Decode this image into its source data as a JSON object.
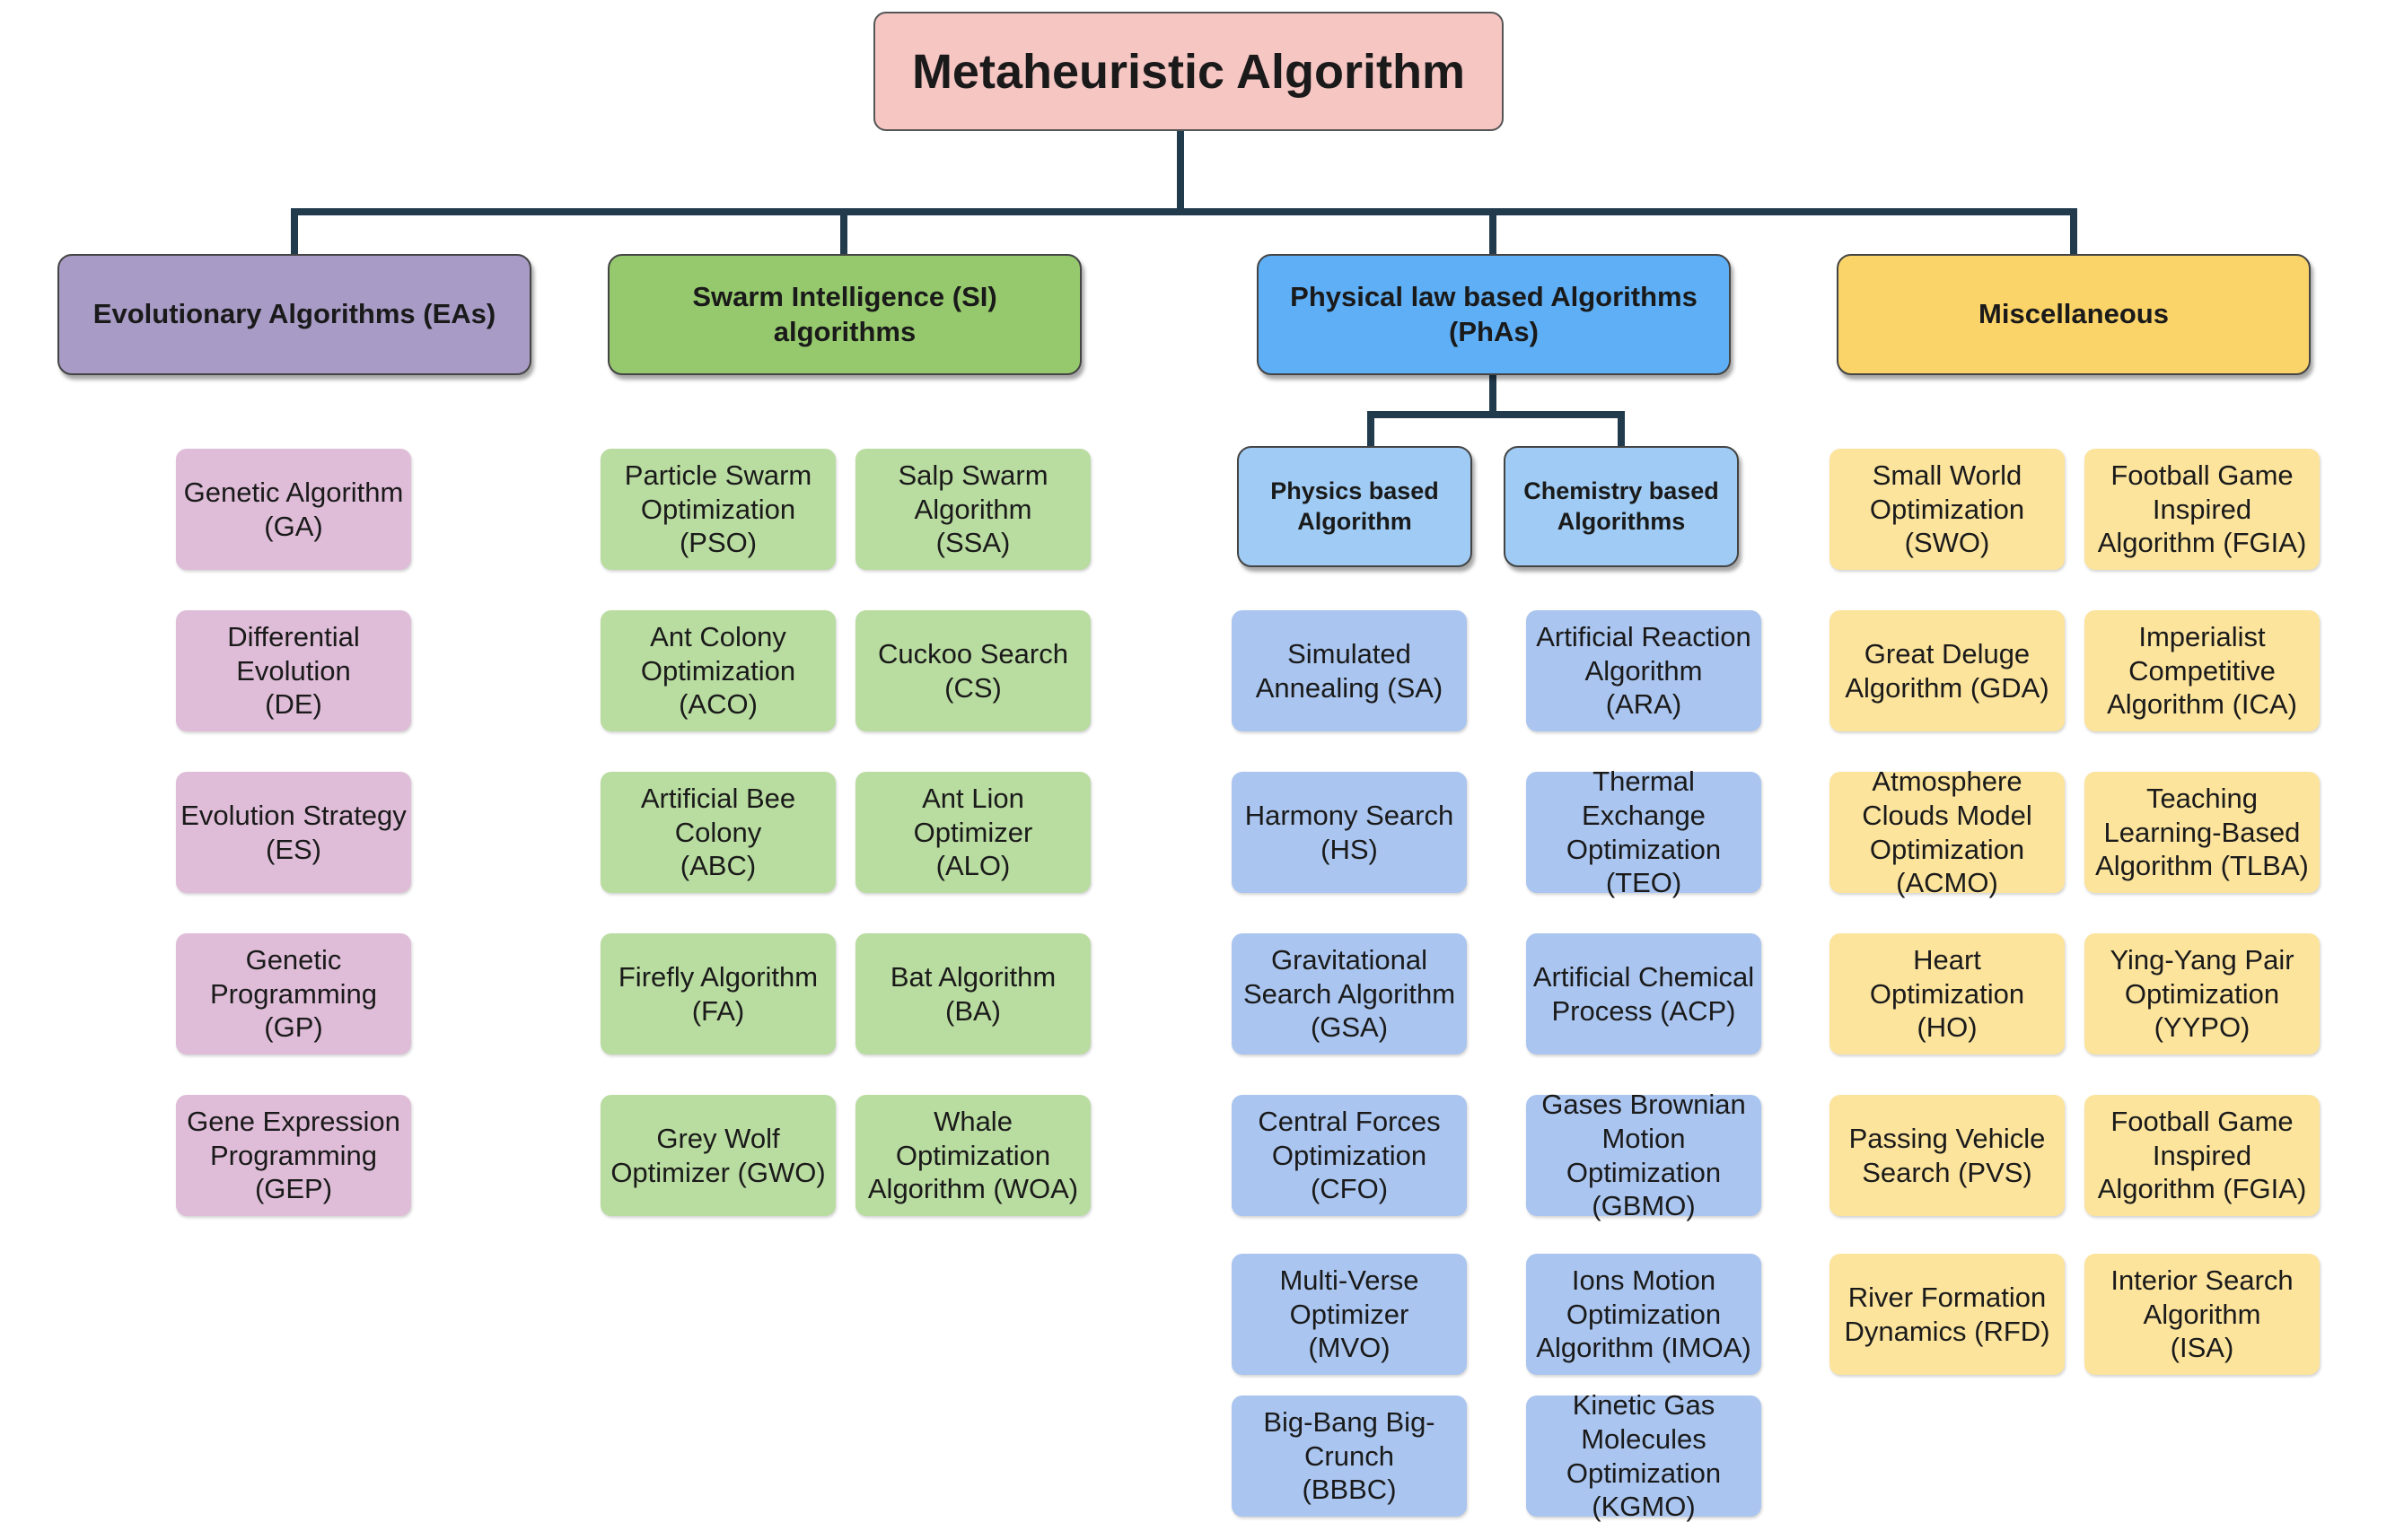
{
  "colors": {
    "root": "#f6c6c3",
    "evolutionary_header": "#a89bc6",
    "evolutionary_leaf": "#dfbdd8",
    "swarm_header": "#96c96d",
    "swarm_leaf": "#b9dca0",
    "physical_header": "#5eaff6",
    "physical_leaf": "#aac5ef",
    "physical_sub": "#9fcbf4",
    "misc_header": "#fbd469",
    "misc_leaf": "#fce49d",
    "connector": "#213a4c"
  },
  "root": {
    "label": "Metaheuristic Algorithm"
  },
  "categories": [
    {
      "label": "Evolutionary Algorithms (EAs)"
    },
    {
      "label": "Swarm Intelligence (SI)\nalgorithms"
    },
    {
      "label": "Physical law based Algorithms\n(PhAs)"
    },
    {
      "label": "Miscellaneous"
    }
  ],
  "physical_subcategories": [
    {
      "label": "Physics based\nAlgorithm"
    },
    {
      "label": "Chemistry based\nAlgorithms"
    }
  ],
  "evolutionary": [
    "Genetic Algorithm\n(GA)",
    "Differential\nEvolution\n(DE)",
    "Evolution Strategy\n(ES)",
    "Genetic\nProgramming\n(GP)",
    "Gene Expression\nProgramming\n(GEP)"
  ],
  "swarm_left": [
    "Particle Swarm\nOptimization\n(PSO)",
    "Ant Colony\nOptimization\n(ACO)",
    "Artificial Bee\nColony\n(ABC)",
    "Firefly Algorithm\n(FA)",
    "Grey Wolf\nOptimizer (GWO)"
  ],
  "swarm_right": [
    "Salp Swarm\nAlgorithm\n(SSA)",
    "Cuckoo Search\n(CS)",
    "Ant Lion Optimizer\n(ALO)",
    "Bat Algorithm\n(BA)",
    "Whale\nOptimization\nAlgorithm (WOA)"
  ],
  "physics": [
    "Simulated\nAnnealing (SA)",
    "Harmony Search\n(HS)",
    "Gravitational\nSearch Algorithm\n(GSA)",
    "Central Forces\nOptimization\n(CFO)",
    "Multi-Verse\nOptimizer\n(MVO)",
    "Big-Bang Big-\nCrunch\n(BBBC)"
  ],
  "chemistry": [
    "Artificial Reaction\nAlgorithm\n(ARA)",
    "Thermal Exchange\nOptimization\n(TEO)",
    "Artificial Chemical\nProcess (ACP)",
    "Gases Brownian\nMotion\nOptimization\n(GBMO)",
    "Ions Motion\nOptimization\nAlgorithm (IMOA)",
    "Kinetic Gas\nMolecules\nOptimization\n(KGMO)"
  ],
  "misc_left": [
    "Small World\nOptimization\n(SWO)",
    "Great Deluge\nAlgorithm (GDA)",
    "Atmosphere\nClouds Model\nOptimization\n(ACMO)",
    "Heart Optimization\n(HO)",
    "Passing Vehicle\nSearch (PVS)",
    "River Formation\nDynamics (RFD)"
  ],
  "misc_right": [
    "Football Game\nInspired\nAlgorithm (FGIA)",
    "Imperialist\nCompetitive\nAlgorithm (ICA)",
    "Teaching\nLearning-Based\nAlgorithm (TLBA)",
    "Ying-Yang Pair\nOptimization\n(YYPO)",
    "Football Game\nInspired\nAlgorithm (FGIA)",
    "Interior Search\nAlgorithm\n(ISA)"
  ]
}
